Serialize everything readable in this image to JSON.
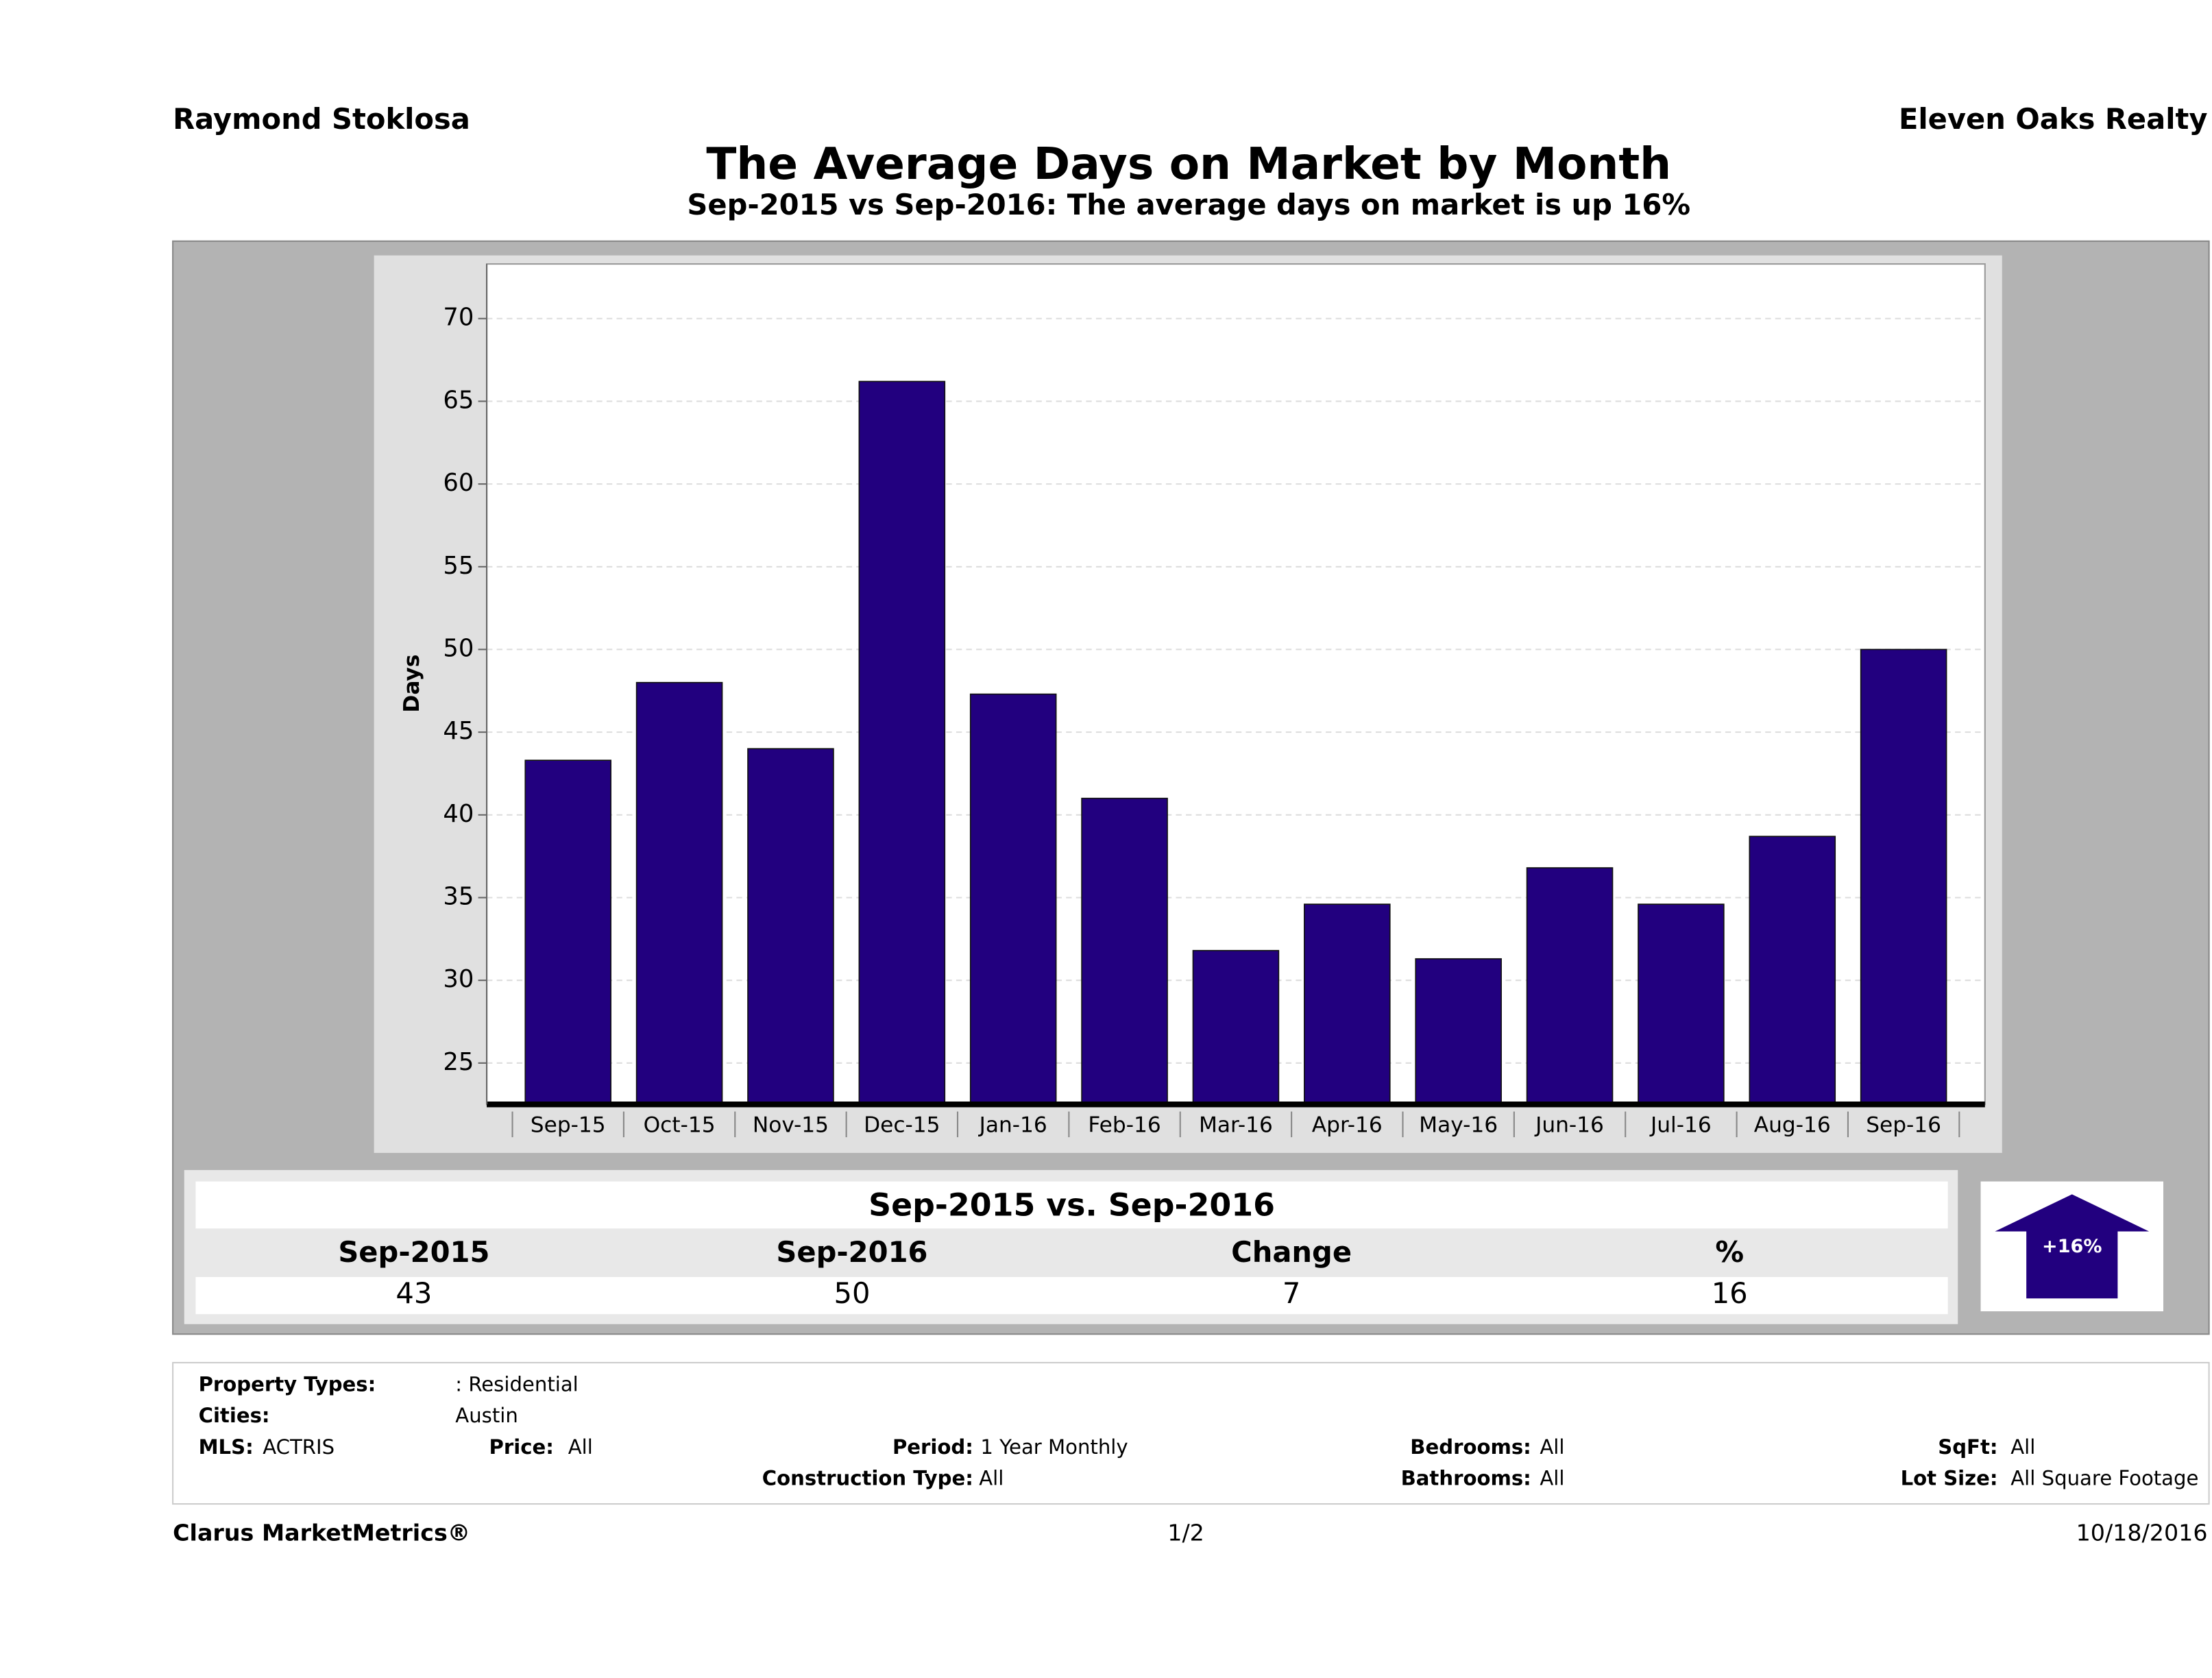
{
  "header": {
    "agent": "Raymond Stoklosa",
    "company": "Eleven Oaks Realty"
  },
  "chart_data": {
    "type": "bar",
    "title": "The Average Days on Market by Month",
    "subtitle": "Sep-2015 vs Sep-2016: The average days on market is up 16%",
    "y_label": "Days",
    "categories": [
      "Sep-15",
      "Oct-15",
      "Nov-15",
      "Dec-15",
      "Jan-16",
      "Feb-16",
      "Mar-16",
      "Apr-16",
      "May-16",
      "Jun-16",
      "Jul-16",
      "Aug-16",
      "Sep-16"
    ],
    "values": [
      43.3,
      48,
      44,
      66.2,
      47.3,
      41,
      31.8,
      34.6,
      31.3,
      36.8,
      34.6,
      38.7,
      50
    ],
    "color": "#22007f",
    "ylim": [
      22.5,
      73.3
    ],
    "yticks": [
      25,
      30,
      35,
      40,
      45,
      50,
      55,
      60,
      65,
      70
    ],
    "grid": true
  },
  "summary": {
    "title": "Sep-2015 vs. Sep-2016",
    "headers": [
      "Sep-2015",
      "Sep-2016",
      "Change",
      "%"
    ],
    "values": [
      "43",
      "50",
      "7",
      "16"
    ],
    "badge": "+16%"
  },
  "filters": [
    {
      "label": "Property Types:",
      "value": ": Residential"
    },
    {
      "label": "Cities:",
      "value": "Austin"
    },
    {
      "label": "MLS:",
      "value": "ACTRIS"
    },
    {
      "label": "Price:",
      "value": "All"
    },
    {
      "label": "Period:",
      "value": "1 Year Monthly"
    },
    {
      "label": "Bedrooms:",
      "value": "All"
    },
    {
      "label": "SqFt:",
      "value": "All"
    },
    {
      "label": "Construction Type:",
      "value": "All"
    },
    {
      "label": "Bathrooms:",
      "value": "All"
    },
    {
      "label": "Lot Size:",
      "value": "All Square Footage"
    }
  ],
  "footer": {
    "brand": "Clarus MarketMetrics®",
    "page": "1/2",
    "date": "10/18/2016"
  }
}
